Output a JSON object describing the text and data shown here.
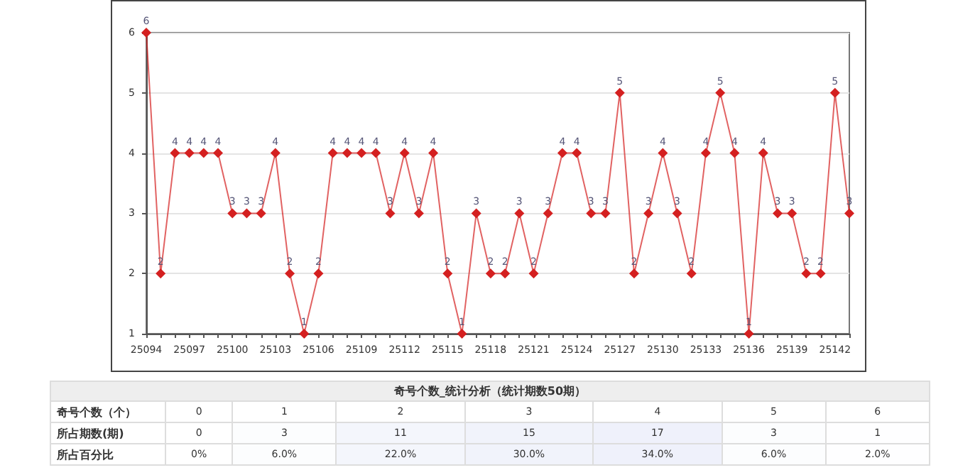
{
  "chart_data": [
    {
      "type": "line",
      "categories": [
        "25094",
        null,
        null,
        "25097",
        null,
        null,
        "25100",
        null,
        null,
        "25103",
        null,
        null,
        "25106",
        null,
        null,
        "25109",
        null,
        null,
        "25112",
        null,
        null,
        "25115",
        null,
        null,
        "25118",
        null,
        null,
        "25121",
        null,
        null,
        "25124",
        null,
        null,
        "25127",
        null,
        null,
        "25130",
        null,
        null,
        "25133",
        null,
        null,
        "25136",
        null,
        null,
        "25139",
        null,
        null,
        "25142",
        null
      ],
      "series": [
        {
          "color": "#d42020",
          "values": [
            6,
            2,
            4,
            4,
            4,
            4,
            3,
            3,
            3,
            4,
            2,
            1,
            2,
            4,
            4,
            4,
            4,
            3,
            4,
            3,
            4,
            2,
            1,
            3,
            2,
            2,
            3,
            2,
            3,
            4,
            4,
            3,
            3,
            5,
            2,
            3,
            4,
            3,
            2,
            4,
            5,
            4,
            1,
            4,
            3,
            3,
            2,
            2,
            5,
            3
          ]
        }
      ],
      "ylim": [
        1,
        6
      ],
      "yticks": [
        1,
        2,
        3,
        4,
        5,
        6
      ],
      "grid": "y",
      "marker": "diamond",
      "line_style": "solid",
      "data_labels": true
    },
    {
      "type": "heatmap",
      "title": "奇号个数_统计分析（统计期数50期）",
      "xlabel": "奇号个数（个）",
      "categories": [
        "0",
        "1",
        "2",
        "3",
        "4",
        "5",
        "6"
      ],
      "y_categories": [
        "所占期数(期)",
        "所占百分比"
      ],
      "cells": [
        [
          0,
          3,
          11,
          15,
          17,
          3,
          1
        ],
        [
          0,
          6,
          22,
          30,
          34,
          6,
          2
        ]
      ],
      "cell_labels": [
        [
          "0",
          "3",
          "11",
          "15",
          "17",
          "3",
          "1"
        ],
        [
          "0%",
          "6.0%",
          "22.0%",
          "30.0%",
          "34.0%",
          "6.0%",
          "2.0%"
        ]
      ]
    }
  ]
}
